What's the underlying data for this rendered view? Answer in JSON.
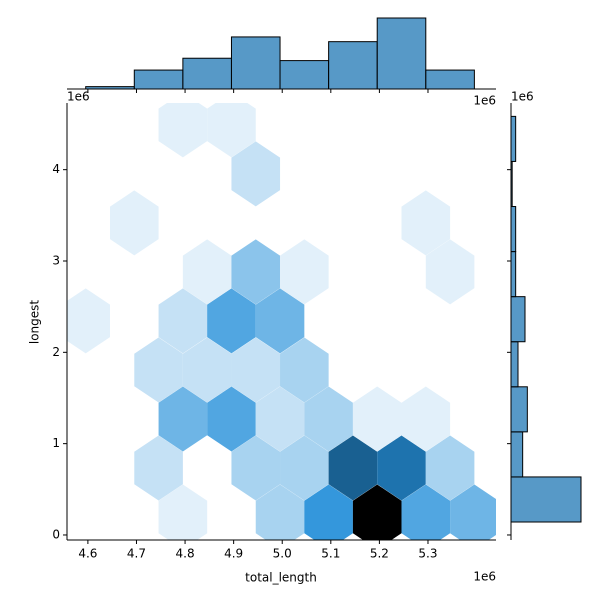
{
  "chart_data": {
    "type": "hexbin_joint",
    "xlabel": "total_length",
    "ylabel": "longest",
    "x_offset_label": "1e6",
    "y_offset_label": "1e6",
    "color": "#1f77b4",
    "xlim": [
      4557000,
      5440000
    ],
    "ylim": [
      -55000,
      4730000
    ],
    "xticks": [
      {
        "value": 4600000,
        "label": "4.6"
      },
      {
        "value": 4700000,
        "label": "4.7"
      },
      {
        "value": 4800000,
        "label": "4.8"
      },
      {
        "value": 4900000,
        "label": "4.9"
      },
      {
        "value": 5000000,
        "label": "5.0"
      },
      {
        "value": 5100000,
        "label": "5.1"
      },
      {
        "value": 5200000,
        "label": "5.2"
      },
      {
        "value": 5300000,
        "label": "5.3"
      }
    ],
    "yticks": [
      {
        "value": 0,
        "label": "0"
      },
      {
        "value": 1000000,
        "label": "1"
      },
      {
        "value": 2000000,
        "label": "2"
      },
      {
        "value": 3000000,
        "label": "3"
      },
      {
        "value": 4000000,
        "label": "4"
      }
    ],
    "hex_x": [
      4795500,
      4995500,
      5095500,
      5195500,
      5295500,
      5395500,
      4745500,
      4945500,
      5045500,
      5145500,
      5245500,
      5345500,
      4795500,
      4895500,
      4995500,
      5095500,
      5195500,
      5295500,
      4745500,
      4845500,
      4945500,
      5045500,
      4595500,
      4795500,
      4895500,
      4995500,
      4845500,
      4945500,
      5045500,
      5345500,
      4695500,
      5295500,
      4945500,
      4795500,
      4895500
    ],
    "hex_y": [
      197000,
      197000,
      197000,
      197000,
      197000,
      197000,
      733700,
      733700,
      733700,
      733700,
      733700,
      733700,
      1270400,
      1270400,
      1270400,
      1270400,
      1270400,
      1270400,
      1807100,
      1807100,
      1807100,
      1807100,
      2343800,
      2343800,
      2343800,
      2343800,
      2880500,
      2880500,
      2880500,
      2880500,
      3417200,
      3417200,
      3953900,
      4490600,
      4490600
    ],
    "hex_counts": [
      1,
      3,
      7,
      15,
      6,
      5,
      2,
      3,
      3,
      10,
      9,
      3,
      5,
      6,
      2,
      3,
      1,
      1,
      2,
      2,
      2,
      3,
      1,
      2,
      6,
      5,
      1,
      4,
      1,
      1,
      1,
      1,
      2,
      1,
      1
    ],
    "x_hist_bins": [
      4595500,
      4695500,
      4795500,
      4895500,
      4995500,
      5095500,
      5195500,
      5295500,
      5395500
    ],
    "x_hist_counts": [
      1,
      8,
      13,
      22,
      12,
      20,
      30,
      8
    ],
    "y_hist_bins": [
      142000,
      635500,
      1129000,
      1622500,
      2116000,
      2609500,
      3103000,
      3596500,
      4090000,
      4583500
    ],
    "y_hist_counts": [
      60,
      10,
      14,
      6,
      12,
      4,
      4,
      1,
      4
    ]
  }
}
